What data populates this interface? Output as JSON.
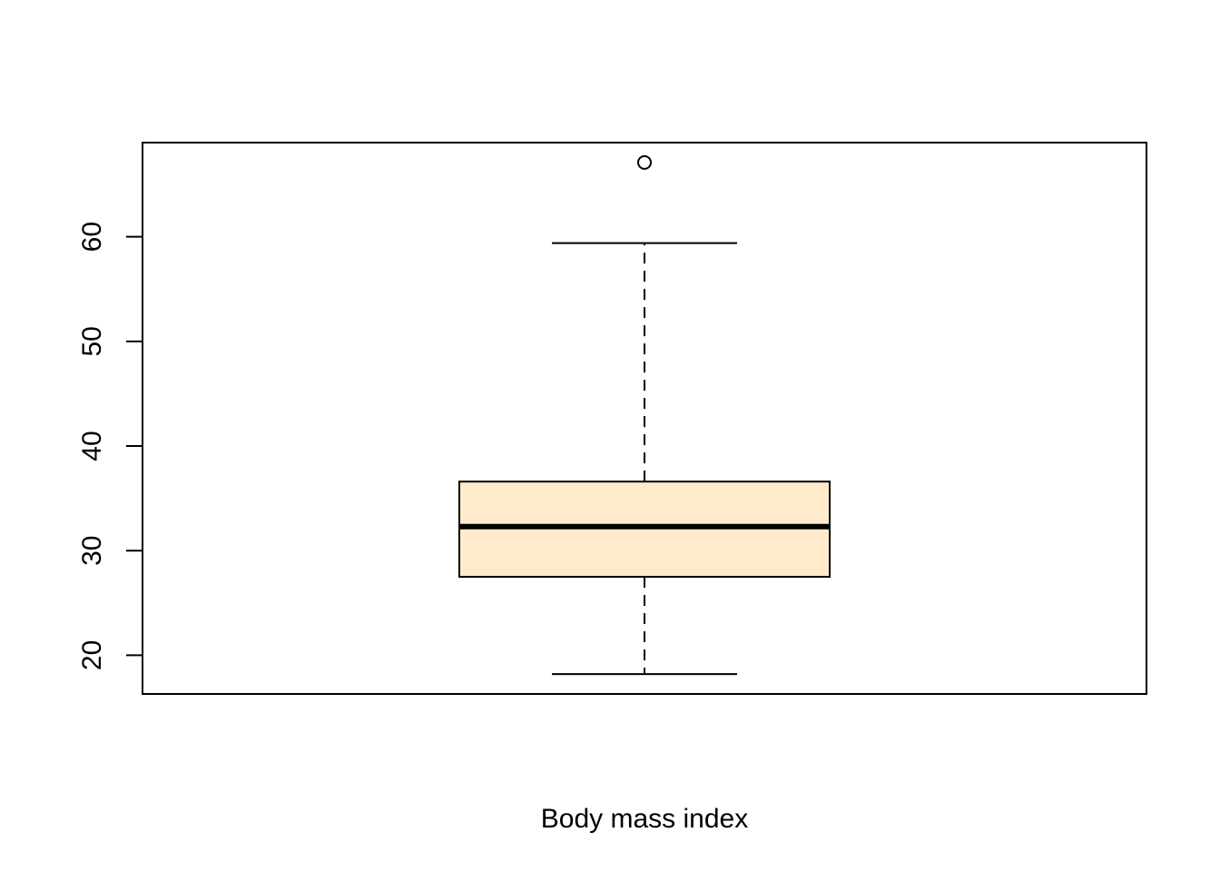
{
  "chart_data": {
    "type": "boxplot",
    "title": "",
    "xlabel": "Body mass index",
    "ylabel": "",
    "ylim": [
      16.3,
      69.0
    ],
    "yticks": [
      20,
      30,
      40,
      50,
      60
    ],
    "grid": false,
    "legend": "none",
    "series": [
      {
        "min": 18.2,
        "q1": 27.5,
        "median": 32.3,
        "q3": 36.6,
        "max": 59.4,
        "outliers": [
          67.1
        ]
      }
    ],
    "colors": {
      "box_fill": "#FFEBCC",
      "stroke": "#000000"
    }
  }
}
